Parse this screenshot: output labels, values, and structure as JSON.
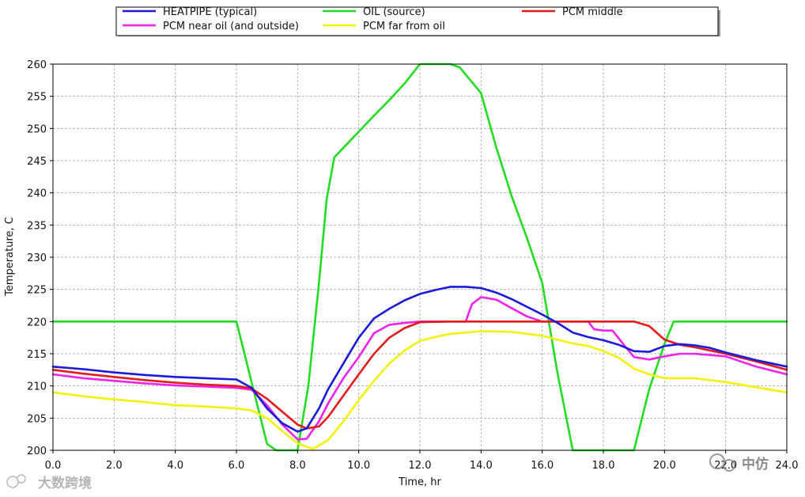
{
  "chart_data": {
    "type": "line",
    "xlabel": "Time, hr",
    "ylabel": "Temperature, C",
    "xlim": [
      0,
      24
    ],
    "ylim": [
      200,
      260
    ],
    "xticks": [
      "0.0",
      "2.0",
      "4.0",
      "6.0",
      "8.0",
      "10.0",
      "12.0",
      "14.0",
      "16.0",
      "18.0",
      "20.0",
      "22.0",
      "24.0"
    ],
    "yticks": [
      "200",
      "205",
      "210",
      "215",
      "220",
      "225",
      "230",
      "235",
      "240",
      "245",
      "250",
      "255",
      "260"
    ],
    "grid": true,
    "legend_position": "top",
    "series": [
      {
        "name": "HEATPIPE (typical)",
        "color": "#1a1adc",
        "points": [
          [
            0,
            213
          ],
          [
            1,
            212.6
          ],
          [
            2,
            212.1
          ],
          [
            3,
            211.7
          ],
          [
            4,
            211.4
          ],
          [
            5,
            211.2
          ],
          [
            6,
            211
          ],
          [
            6.5,
            209.7
          ],
          [
            7,
            206.5
          ],
          [
            7.5,
            204.2
          ],
          [
            8,
            202.9
          ],
          [
            8.3,
            203.4
          ],
          [
            8.7,
            206.5
          ],
          [
            9,
            209.5
          ],
          [
            9.5,
            213.5
          ],
          [
            10,
            217.5
          ],
          [
            10.5,
            220.5
          ],
          [
            11,
            222
          ],
          [
            11.5,
            223.3
          ],
          [
            12,
            224.3
          ],
          [
            12.5,
            224.9
          ],
          [
            13,
            225.4
          ],
          [
            13.5,
            225.4
          ],
          [
            14,
            225.2
          ],
          [
            14.5,
            224.5
          ],
          [
            15,
            223.5
          ],
          [
            15.5,
            222.3
          ],
          [
            16,
            221.1
          ],
          [
            16.5,
            219.8
          ],
          [
            17,
            218.3
          ],
          [
            17.5,
            217.6
          ],
          [
            18,
            217.1
          ],
          [
            18.5,
            216.4
          ],
          [
            19,
            215.4
          ],
          [
            19.5,
            215.3
          ],
          [
            20,
            216.2
          ],
          [
            20.5,
            216.5
          ],
          [
            21,
            216.3
          ],
          [
            21.5,
            215.9
          ],
          [
            22,
            215.2
          ],
          [
            22.5,
            214.6
          ],
          [
            23,
            214
          ],
          [
            23.5,
            213.5
          ],
          [
            24,
            213
          ]
        ]
      },
      {
        "name": "OIL (source)",
        "color": "#22dd22",
        "points": [
          [
            0,
            220
          ],
          [
            6,
            220
          ],
          [
            7,
            201
          ],
          [
            7.3,
            200
          ],
          [
            8,
            200
          ],
          [
            8.35,
            210
          ],
          [
            8.7,
            226
          ],
          [
            8.95,
            239
          ],
          [
            9.2,
            245.5
          ],
          [
            9.5,
            247
          ],
          [
            10,
            249.5
          ],
          [
            10.5,
            252
          ],
          [
            11,
            254.4
          ],
          [
            11.5,
            257
          ],
          [
            12,
            260
          ],
          [
            13,
            260
          ],
          [
            13.3,
            259.5
          ],
          [
            14,
            255.5
          ],
          [
            14.5,
            247
          ],
          [
            15,
            239.5
          ],
          [
            15.5,
            233
          ],
          [
            16,
            226
          ],
          [
            16.5,
            212
          ],
          [
            17,
            200
          ],
          [
            19,
            200
          ],
          [
            19.5,
            209.5
          ],
          [
            20,
            216.5
          ],
          [
            20.3,
            220
          ],
          [
            24,
            220
          ]
        ]
      },
      {
        "name": "PCM middle",
        "color": "#e31b1b",
        "points": [
          [
            0,
            212.5
          ],
          [
            1,
            211.9
          ],
          [
            2,
            211.4
          ],
          [
            3,
            210.9
          ],
          [
            4,
            210.5
          ],
          [
            5,
            210.2
          ],
          [
            6,
            210
          ],
          [
            6.5,
            209.6
          ],
          [
            7,
            208
          ],
          [
            7.5,
            206
          ],
          [
            8,
            204
          ],
          [
            8.3,
            203.4
          ],
          [
            8.7,
            203.7
          ],
          [
            9,
            205.2
          ],
          [
            9.5,
            208.5
          ],
          [
            10,
            211.8
          ],
          [
            10.5,
            215
          ],
          [
            11,
            217.5
          ],
          [
            11.5,
            219
          ],
          [
            12,
            219.9
          ],
          [
            13,
            220
          ],
          [
            19,
            220
          ],
          [
            19.5,
            219.3
          ],
          [
            20,
            217.2
          ],
          [
            20.5,
            216.4
          ],
          [
            21,
            216
          ],
          [
            22,
            215
          ],
          [
            23,
            213.8
          ],
          [
            24,
            212.5
          ]
        ]
      },
      {
        "name": "PCM near oil (and outside)",
        "color": "#ee22ee",
        "points": [
          [
            0,
            211.8
          ],
          [
            1,
            211.2
          ],
          [
            2,
            210.8
          ],
          [
            3,
            210.4
          ],
          [
            4,
            210.1
          ],
          [
            5,
            209.9
          ],
          [
            6,
            209.7
          ],
          [
            6.5,
            209.4
          ],
          [
            7,
            207
          ],
          [
            7.5,
            204
          ],
          [
            8,
            201.7
          ],
          [
            8.3,
            201.8
          ],
          [
            8.7,
            204.5
          ],
          [
            9,
            207.3
          ],
          [
            9.5,
            211.2
          ],
          [
            10,
            214.5
          ],
          [
            10.5,
            218.2
          ],
          [
            11,
            219.5
          ],
          [
            11.5,
            219.8
          ],
          [
            12,
            220
          ],
          [
            13.5,
            220
          ],
          [
            13.7,
            222.7
          ],
          [
            14,
            223.8
          ],
          [
            14.5,
            223.4
          ],
          [
            15,
            222.1
          ],
          [
            15.5,
            220.8
          ],
          [
            16,
            220
          ],
          [
            17.5,
            220
          ],
          [
            17.7,
            218.8
          ],
          [
            18,
            218.6
          ],
          [
            18.3,
            218.6
          ],
          [
            18.7,
            216.2
          ],
          [
            19,
            214.5
          ],
          [
            19.5,
            214.1
          ],
          [
            20,
            214.6
          ],
          [
            20.5,
            215
          ],
          [
            21,
            215
          ],
          [
            22,
            214.6
          ],
          [
            23,
            213
          ],
          [
            24,
            211.8
          ]
        ]
      },
      {
        "name": "PCM far from oil",
        "color": "#f2f20c",
        "points": [
          [
            0,
            209
          ],
          [
            1,
            208.4
          ],
          [
            2,
            207.9
          ],
          [
            3,
            207.5
          ],
          [
            4,
            207
          ],
          [
            5,
            206.8
          ],
          [
            6,
            206.5
          ],
          [
            6.5,
            206.2
          ],
          [
            7,
            205
          ],
          [
            7.5,
            203
          ],
          [
            8,
            201.1
          ],
          [
            8.5,
            200.2
          ],
          [
            9,
            201.6
          ],
          [
            9.5,
            204.5
          ],
          [
            10,
            207.8
          ],
          [
            10.5,
            210.8
          ],
          [
            11,
            213.5
          ],
          [
            11.5,
            215.5
          ],
          [
            12,
            217
          ],
          [
            12.5,
            217.6
          ],
          [
            13,
            218.1
          ],
          [
            13.5,
            218.3
          ],
          [
            14,
            218.5
          ],
          [
            15,
            218.4
          ],
          [
            16,
            217.8
          ],
          [
            16.5,
            217.2
          ],
          [
            17,
            216.6
          ],
          [
            17.5,
            216.2
          ],
          [
            18,
            215.4
          ],
          [
            18.5,
            214.4
          ],
          [
            19,
            212.7
          ],
          [
            19.5,
            211.8
          ],
          [
            20,
            211.2
          ],
          [
            21,
            211.2
          ],
          [
            22,
            210.6
          ],
          [
            23,
            209.8
          ],
          [
            24,
            209
          ]
        ]
      }
    ]
  },
  "watermark": {
    "left_text": "大数跨境",
    "right_text": "中仿"
  }
}
